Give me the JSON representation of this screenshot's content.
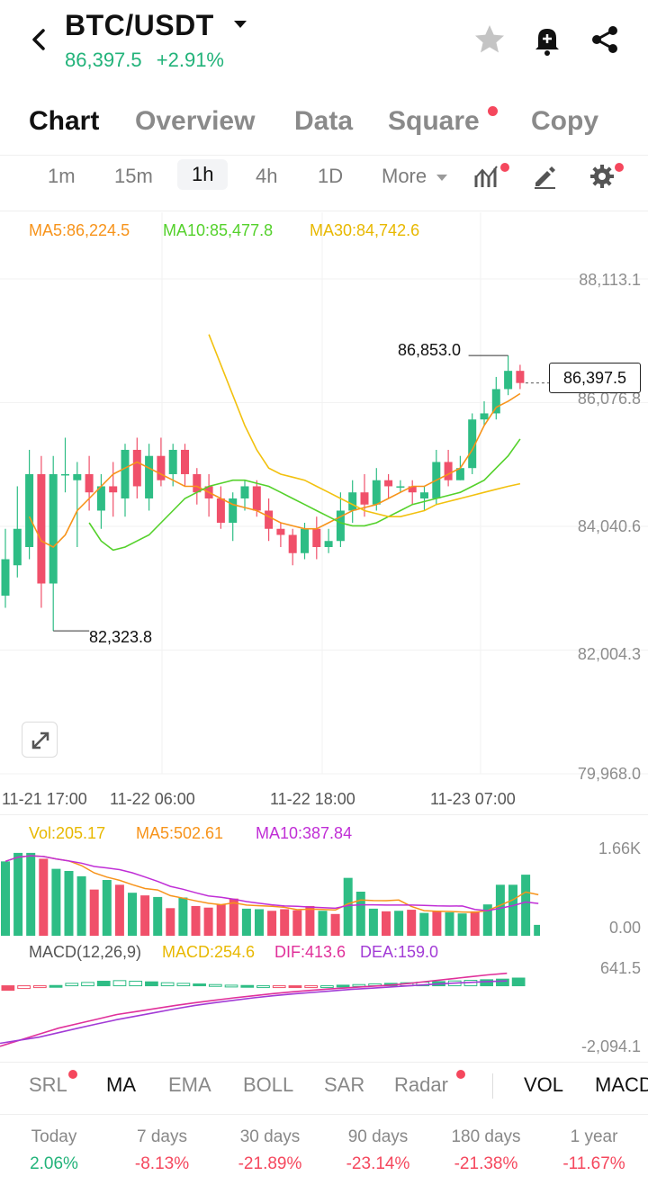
{
  "header": {
    "pair": "BTC/USDT",
    "price": "86,397.5",
    "change": "+2.91%",
    "icons": [
      "back-arrow-icon",
      "caret-down-icon",
      "star-icon",
      "bell-plus-icon",
      "share-icon"
    ]
  },
  "tabs": [
    {
      "label": "Chart",
      "active": true
    },
    {
      "label": "Overview"
    },
    {
      "label": "Data"
    },
    {
      "label": "Square",
      "badge": true
    },
    {
      "label": "Copy"
    }
  ],
  "intervals": {
    "items": [
      "1m",
      "15m",
      "1h",
      "4h",
      "1D"
    ],
    "selected": "1h",
    "more_label": "More"
  },
  "ma_legend": {
    "ma5": "MA5:86,224.5",
    "ma10": "MA10:85,477.8",
    "ma30": "MA30:84,742.6"
  },
  "price_axis": [
    "88,113.1",
    "86,076.8",
    "84,040.6",
    "82,004.3",
    "79,968.0"
  ],
  "annotations": {
    "high": "86,853.0",
    "low": "82,323.8",
    "last": "86,397.5"
  },
  "time_axis": [
    "11-21 17:00",
    "11-22 06:00",
    "11-22 18:00",
    "11-23 07:00"
  ],
  "volume": {
    "vol": "Vol:205.17",
    "ma5": "MA5:502.61",
    "ma10": "MA10:387.84",
    "axis_top": "1.66K",
    "axis_bottom": "0.00"
  },
  "macd": {
    "title": "MACD(12,26,9)",
    "macd": "MACD:254.6",
    "dif": "DIF:413.6",
    "dea": "DEA:159.0",
    "axis_top": "641.5",
    "axis_bottom": "-2,094.1"
  },
  "indicator_tabs": [
    {
      "label": "SRL",
      "badge": true
    },
    {
      "label": "MA",
      "active": true
    },
    {
      "label": "EMA"
    },
    {
      "label": "BOLL"
    },
    {
      "label": "SAR"
    },
    {
      "label": "Radar",
      "badge": true
    },
    {
      "label": "VOL",
      "active": true
    },
    {
      "label": "MACD"
    }
  ],
  "performance": [
    {
      "label": "Today",
      "value": "2.06%",
      "color": "#22b37a"
    },
    {
      "label": "7 days",
      "value": "-8.13%",
      "color": "#f5475d"
    },
    {
      "label": "30 days",
      "value": "-21.89%",
      "color": "#f5475d"
    },
    {
      "label": "90 days",
      "value": "-23.14%",
      "color": "#f5475d"
    },
    {
      "label": "180 days",
      "value": "-21.38%",
      "color": "#f5475d"
    },
    {
      "label": "1 year",
      "value": "-11.67%",
      "color": "#f5475d"
    }
  ],
  "colors": {
    "up": "#2ebd85",
    "down": "#f0506a",
    "ma5": "#f7931a",
    "ma10": "#54d12b",
    "ma30": "#f2c10f",
    "dif": "#e0309a",
    "dea": "#a23bd6"
  },
  "chart_data": {
    "type": "candlestick",
    "ylim": [
      79968.0,
      88113.1
    ],
    "candles": [
      {
        "o": 82900,
        "c": 83500,
        "h": 84000,
        "l": 82700
      },
      {
        "o": 83400,
        "c": 84000,
        "h": 84700,
        "l": 83200
      },
      {
        "o": 83700,
        "c": 84900,
        "h": 85300,
        "l": 83500
      },
      {
        "o": 84900,
        "c": 83100,
        "h": 85200,
        "l": 82700
      },
      {
        "o": 83100,
        "c": 84900,
        "h": 85200,
        "l": 82320
      },
      {
        "o": 84900,
        "c": 84900,
        "h": 85500,
        "l": 84600
      },
      {
        "o": 84800,
        "c": 84900,
        "h": 85100,
        "l": 83700
      },
      {
        "o": 84900,
        "c": 84600,
        "h": 85200,
        "l": 84300
      },
      {
        "o": 84300,
        "c": 84700,
        "h": 84900,
        "l": 84000
      },
      {
        "o": 84700,
        "c": 84600,
        "h": 85100,
        "l": 84200
      },
      {
        "o": 84500,
        "c": 85300,
        "h": 85400,
        "l": 84200
      },
      {
        "o": 85300,
        "c": 84700,
        "h": 85500,
        "l": 84500
      },
      {
        "o": 84500,
        "c": 85200,
        "h": 85400,
        "l": 84300
      },
      {
        "o": 85200,
        "c": 84800,
        "h": 85500,
        "l": 84700
      },
      {
        "o": 84900,
        "c": 85300,
        "h": 85400,
        "l": 84700
      },
      {
        "o": 85300,
        "c": 84900,
        "h": 85400,
        "l": 84700
      },
      {
        "o": 84900,
        "c": 84600,
        "h": 85000,
        "l": 84400
      },
      {
        "o": 84700,
        "c": 84500,
        "h": 84900,
        "l": 84200
      },
      {
        "o": 84500,
        "c": 84100,
        "h": 84700,
        "l": 84000
      },
      {
        "o": 84100,
        "c": 84500,
        "h": 84600,
        "l": 83800
      },
      {
        "o": 84500,
        "c": 84700,
        "h": 84800,
        "l": 84300
      },
      {
        "o": 84700,
        "c": 84300,
        "h": 84800,
        "l": 84200
      },
      {
        "o": 84300,
        "c": 84000,
        "h": 84500,
        "l": 83800
      },
      {
        "o": 84000,
        "c": 83900,
        "h": 84100,
        "l": 83700
      },
      {
        "o": 83900,
        "c": 83600,
        "h": 84000,
        "l": 83400
      },
      {
        "o": 83600,
        "c": 84000,
        "h": 84100,
        "l": 83500
      },
      {
        "o": 84000,
        "c": 83700,
        "h": 84200,
        "l": 83500
      },
      {
        "o": 83700,
        "c": 83800,
        "h": 84000,
        "l": 83600
      },
      {
        "o": 83800,
        "c": 84300,
        "h": 84600,
        "l": 83700
      },
      {
        "o": 84300,
        "c": 84600,
        "h": 84800,
        "l": 84100
      },
      {
        "o": 84600,
        "c": 84400,
        "h": 84900,
        "l": 84200
      },
      {
        "o": 84400,
        "c": 84800,
        "h": 85000,
        "l": 84300
      },
      {
        "o": 84800,
        "c": 84700,
        "h": 84900,
        "l": 84500
      },
      {
        "o": 84700,
        "c": 84700,
        "h": 84800,
        "l": 84600
      },
      {
        "o": 84700,
        "c": 84600,
        "h": 84800,
        "l": 84400
      },
      {
        "o": 84500,
        "c": 84600,
        "h": 84700,
        "l": 84300
      },
      {
        "o": 84500,
        "c": 85100,
        "h": 85300,
        "l": 84400
      },
      {
        "o": 85100,
        "c": 84800,
        "h": 85300,
        "l": 84700
      },
      {
        "o": 84800,
        "c": 85000,
        "h": 85200,
        "l": 84800
      },
      {
        "o": 85000,
        "c": 85800,
        "h": 85900,
        "l": 84900
      },
      {
        "o": 85800,
        "c": 85900,
        "h": 86100,
        "l": 85700
      },
      {
        "o": 85900,
        "c": 86300,
        "h": 86500,
        "l": 85800
      },
      {
        "o": 86300,
        "c": 86600,
        "h": 86853,
        "l": 86200
      },
      {
        "o": 86600,
        "c": 86400,
        "h": 86700,
        "l": 86300
      }
    ],
    "ma5": [
      84200,
      83800,
      83700,
      83900,
      84300,
      84500,
      84700,
      84900,
      85000,
      85100,
      85000,
      84900,
      84800,
      84700,
      84700,
      84600,
      84500,
      84400,
      84350,
      84300,
      84200,
      84100,
      84050,
      84000,
      84000,
      84100,
      84200,
      84300,
      84350,
      84400,
      84500,
      84600,
      84700,
      84700,
      84800,
      84900,
      85000,
      85300,
      85700,
      86000,
      86100,
      86224.5
    ],
    "ma10": [
      84100,
      83800,
      83650,
      83700,
      83800,
      83900,
      84100,
      84300,
      84500,
      84600,
      84700,
      84750,
      84800,
      84800,
      84750,
      84700,
      84600,
      84500,
      84400,
      84300,
      84200,
      84100,
      84050,
      84050,
      84100,
      84200,
      84300,
      84400,
      84450,
      84500,
      84550,
      84600,
      84700,
      84800,
      85000,
      85200,
      85477.8
    ],
    "ma30": [
      87200,
      86700,
      86200,
      85700,
      85300,
      85000,
      84900,
      84850,
      84800,
      84700,
      84600,
      84500,
      84400,
      84300,
      84250,
      84200,
      84200,
      84250,
      84300,
      84400,
      84450,
      84500,
      84550,
      84600,
      84650,
      84700,
      84742.6
    ],
    "volume": [
      1400,
      1560,
      1560,
      1450,
      1260,
      1220,
      1120,
      870,
      1050,
      960,
      810,
      760,
      730,
      520,
      720,
      560,
      530,
      590,
      700,
      510,
      500,
      470,
      500,
      480,
      560,
      470,
      410,
      1090,
      830,
      510,
      460,
      470,
      490,
      430,
      460,
      440,
      420,
      460,
      590,
      960,
      960,
      1150,
      205.17
    ],
    "macd_hist": [
      -150,
      -90,
      -60,
      10,
      80,
      110,
      150,
      170,
      150,
      130,
      100,
      80,
      60,
      40,
      20,
      10,
      0,
      -10,
      -20,
      -10,
      0,
      20,
      40,
      60,
      80,
      100,
      120,
      140,
      160,
      180,
      200,
      220,
      254.6
    ],
    "dif": [
      -2000,
      -1800,
      -1600,
      -1400,
      -1250,
      -1100,
      -950,
      -850,
      -750,
      -650,
      -560,
      -480,
      -400,
      -330,
      -260,
      -200,
      -150,
      -100,
      -60,
      -20,
      20,
      80,
      150,
      220,
      290,
      360,
      413.6
    ],
    "dea": [
      -1900,
      -1800,
      -1700,
      -1550,
      -1400,
      -1260,
      -1120,
      -1000,
      -880,
      -760,
      -650,
      -560,
      -480,
      -400,
      -330,
      -270,
      -220,
      -170,
      -120,
      -80,
      -40,
      0,
      40,
      80,
      110,
      140,
      159.0
    ],
    "volume_ylim": [
      0,
      1660
    ],
    "macd_ylim": [
      -2094.1,
      641.5
    ]
  }
}
